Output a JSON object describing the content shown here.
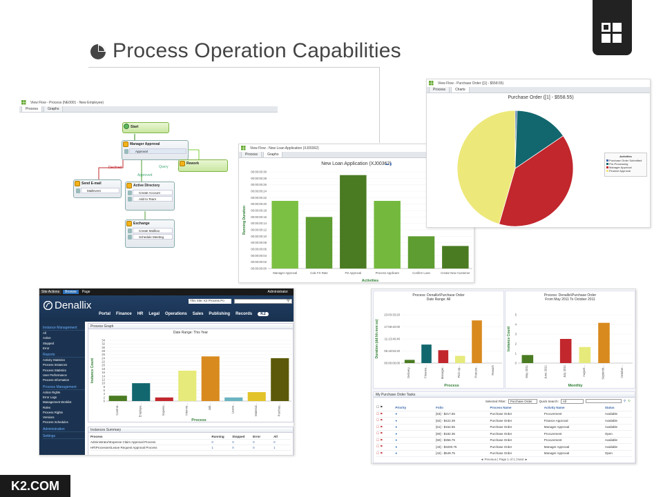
{
  "slide": {
    "title": "Process Operation Capabilities",
    "footer": "K2.COM"
  },
  "viewflow": {
    "title": "View Flow - Process (NE0001 - New Employee)",
    "tabs": [
      "Process",
      "Graphs"
    ],
    "nodes": {
      "start": "Start",
      "manager_approval": "Manager Approval",
      "approval": "Approval",
      "rework": "Rework",
      "send_email": "Send E-mail",
      "mail_event": "MailEvent",
      "active_directory": "Active Directory",
      "create_account": "Create Account",
      "add_to_team": "Add to Team",
      "exchange": "Exchange",
      "create_mailbox": "Create Mailbox",
      "schedule_meeting": "Schedule Meeting"
    },
    "lines": {
      "declined": "Declined",
      "query": "Query",
      "approved": "Approved"
    }
  },
  "loan": {
    "title": "View Flow - New Loan Application (XJ00362)",
    "tabs": [
      "Process",
      "Graphs"
    ],
    "chart_data": {
      "type": "bar",
      "title": "New Loan Application (XJ00362)",
      "xlabel": "Activities",
      "ylabel": "Running Duration",
      "categories": [
        "Manager Approval",
        "Calc FX Rate",
        "FD Approval",
        "Process Applicant",
        "Confirm Loan",
        "Create New Customer"
      ],
      "values": [
        21,
        16,
        29,
        21,
        10,
        7
      ],
      "ylim": [
        0,
        30
      ],
      "yticks": [
        "00:00:00:00",
        "00:00:00:02",
        "00:00:00:04",
        "00:00:00:06",
        "00:00:00:08",
        "00:00:00:10",
        "00:00:00:12",
        "00:00:00:14",
        "00:00:00:16",
        "00:00:00:18",
        "00:00:00:20",
        "00:00:00:22",
        "00:00:00:24",
        "00:00:00:26",
        "00:00:00:28",
        "00:00:00:30"
      ],
      "colors": [
        "#7cc043",
        "#5e9d31",
        "#4a7b22",
        "#74b93d",
        "#5e9d31",
        "#4a7b22"
      ]
    }
  },
  "purchase_pie": {
    "title": "View Flow - Purchase Order ([1] - $558.55)",
    "tabs": [
      "Process",
      "Charts"
    ],
    "chart_data": {
      "type": "pie",
      "title": "Purchase Order ([1] - $558.55)",
      "legend_title": "Activities",
      "legend_position": "right",
      "series": [
        {
          "name": "Purchase Order Submitted",
          "value": 0.5,
          "color": "#3a66a8"
        },
        {
          "name": "Pre-Processing",
          "value": 15,
          "color": "#12676e"
        },
        {
          "name": "Manager Approval",
          "value": 39,
          "color": "#c1272d"
        },
        {
          "name": "Finance Approval",
          "value": 45.5,
          "color": "#ede87a"
        }
      ]
    }
  },
  "portal": {
    "ribbon": {
      "site_actions": "Site Actions",
      "browse": "Browse",
      "page": "Page",
      "user": "Administrator"
    },
    "brand": "Denallix",
    "search_scope": "This Site: K2 Process Po",
    "nav": [
      "Portal",
      "Finance",
      "HR",
      "Legal",
      "Operations",
      "Sales",
      "Publishing",
      "Records",
      "K2"
    ],
    "left_nav": {
      "groups": [
        {
          "title": "Instance Management",
          "items": [
            "All",
            "Active",
            "Stopped",
            "Error"
          ]
        },
        {
          "title": "Reports",
          "items": [
            "Activity Statistics",
            "Process Instances",
            "Process Statistics",
            "User Performance",
            "Process Information"
          ]
        },
        {
          "title": "Process Management",
          "items": [
            "Action Rights",
            "Error Logs",
            "Management Worklist",
            "Roles",
            "Process Rights",
            "Versions",
            "Process Schedules"
          ]
        },
        {
          "title": "Administration",
          "items": []
        },
        {
          "title": "Settings",
          "items": []
        }
      ]
    },
    "graph_header": "Process Graph",
    "chart_data": {
      "type": "bar",
      "title": "Date Range: This Year",
      "xlabel": "Process",
      "ylabel": "Instance Count",
      "categories": [
        "Contrat...",
        "Employe...",
        "Expens...",
        "Intervie...",
        "Job...",
        "Leave...",
        "Material...",
        "Purchas..."
      ],
      "values": [
        3,
        10,
        2,
        17,
        25,
        2,
        5,
        24
      ],
      "ylim": [
        0,
        34
      ],
      "yticks": [
        "0",
        "2",
        "4",
        "6",
        "8",
        "10",
        "12",
        "14",
        "16",
        "18",
        "20",
        "22",
        "24",
        "26",
        "28",
        "30",
        "32",
        "34"
      ],
      "colors": [
        "#4a7b22",
        "#12676e",
        "#c1272d",
        "#e6ea7a",
        "#d98a1e",
        "#6ab3c0",
        "#e2c32a",
        "#5c5a0a"
      ]
    },
    "instances": {
      "header": "Instances Summary",
      "columns": [
        "Process",
        "Running",
        "Stopped",
        "Error",
        "All"
      ],
      "rows": [
        [
          "Administrator\\Expense Claim Approval Process",
          "0",
          "0",
          "0",
          "0"
        ],
        [
          "HR\\Processes\\Leave Request Approval Process",
          "1",
          "0",
          "0",
          "1"
        ]
      ]
    }
  },
  "denallix_po": {
    "chart_left": {
      "title": "Process: Denallix\\Purchase Order",
      "subtitle": "Date Range: All",
      "chart_data": {
        "type": "bar",
        "xlabel": "Process",
        "ylabel": "Duration (dd:hh:mm:ss)",
        "categories": [
          "Delivery...",
          "Finance...",
          "Manager...",
          "Pick Up...",
          "Procure...",
          "Rework"
        ],
        "values": [
          4,
          23,
          16,
          9,
          53,
          0
        ],
        "ylim": [
          0,
          60
        ],
        "yticks": [
          "00:00:00:00",
          "05:18:53:20",
          "11:13:46:40",
          "17:08:40:00",
          "23:03:33:20"
        ],
        "colors": [
          "#4a7b22",
          "#12676e",
          "#c1272d",
          "#e6ea7a",
          "#d98a1e",
          "#999999"
        ]
      }
    },
    "chart_right": {
      "title": "Process: Denallix\\Purchase Order",
      "subtitle": "From May 2011 To October 2011",
      "chart_data": {
        "type": "bar",
        "xlabel": "Monthly",
        "ylabel": "Instance Count",
        "categories": [
          "May 2011",
          "June 2011",
          "July 2011",
          "August...",
          "Septemb...",
          "October..."
        ],
        "values": [
          1,
          0,
          3,
          2,
          5,
          0
        ],
        "ylim": [
          0,
          6
        ],
        "yticks": [
          "0",
          "1",
          "2",
          "3",
          "4",
          "5"
        ],
        "colors": [
          "#4a7b22",
          "#12676e",
          "#c1272d",
          "#e6ea7a",
          "#d98a1e",
          "#999999"
        ]
      }
    },
    "tasks": {
      "header": "My Purchase Order Tasks",
      "filter_label": "Selected Filter:",
      "filter_value": "Purchase Order",
      "quick_label": "Quick Search:",
      "quick_value": "All",
      "columns": [
        "Priority",
        "Folio",
        "Process Name",
        "Activity Name",
        "Status"
      ],
      "rows": [
        [
          "[63] - $217.55",
          "Purchase Order",
          "Procurement",
          "Available"
        ],
        [
          "[62] - $422.39",
          "Purchase Order",
          "Finance Approval",
          "Available"
        ],
        [
          "[61] - $152.65",
          "Purchase Order",
          "Manager Approval",
          "Available"
        ],
        [
          "[60] - $182.35",
          "Purchase Order",
          "Procurement",
          "Open"
        ],
        [
          "[50] - $356.75",
          "Purchase Order",
          "Procurement",
          "Available"
        ],
        [
          "[43] - $3200.75",
          "Purchase Order",
          "Manager Approval",
          "Available"
        ],
        [
          "[42] - $549.75",
          "Purchase Order",
          "Manager Approval",
          "Open"
        ]
      ],
      "pager": "◄ Previous  |  Page 1 of 1  |  Next ►"
    }
  }
}
